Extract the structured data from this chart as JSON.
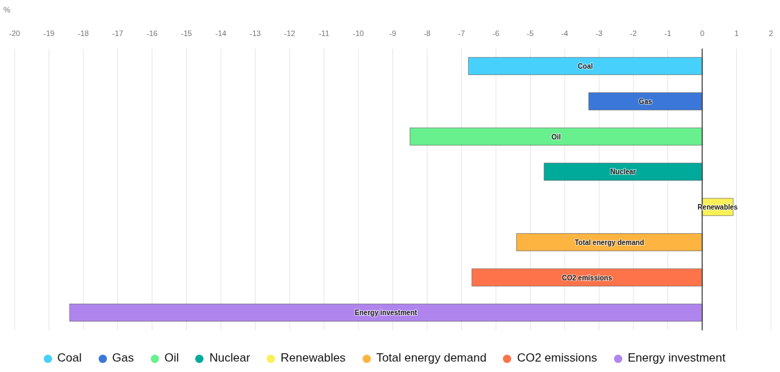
{
  "chart_data": {
    "type": "bar",
    "orientation": "horizontal",
    "stacked": true,
    "xlabel": "%",
    "categories": [
      null,
      null,
      null,
      null,
      null,
      null,
      null,
      null
    ],
    "series": [
      {
        "name": "Coal",
        "color": "#48d0fc",
        "values": [
          -6.8,
          null,
          null,
          null,
          null,
          null,
          null,
          null
        ]
      },
      {
        "name": "Gas",
        "color": "#3b77d8",
        "values": [
          null,
          -3.3,
          null,
          null,
          null,
          null,
          null,
          null
        ]
      },
      {
        "name": "Oil",
        "color": "#68f08f",
        "values": [
          null,
          null,
          -8.5,
          null,
          null,
          null,
          null,
          null
        ]
      },
      {
        "name": "Nuclear",
        "color": "#00aa9a",
        "values": [
          null,
          null,
          null,
          -4.6,
          null,
          null,
          null,
          null
        ]
      },
      {
        "name": "Renewables",
        "color": "#fbf056",
        "values": [
          null,
          null,
          null,
          null,
          0.9,
          null,
          null,
          null
        ]
      },
      {
        "name": "Total energy demand",
        "color": "#fdb440",
        "values": [
          null,
          null,
          null,
          null,
          null,
          -5.4,
          null,
          null
        ]
      },
      {
        "name": "CO2 emissions",
        "color": "#fe734a",
        "values": [
          null,
          null,
          null,
          null,
          null,
          null,
          -6.7,
          null
        ]
      },
      {
        "name": "Energy investment",
        "color": "#af85ed",
        "values": [
          null,
          null,
          null,
          null,
          null,
          null,
          null,
          -18.4
        ]
      }
    ],
    "xlim": [
      -20,
      2
    ],
    "xticks": [
      -20,
      -19,
      -18,
      -17,
      -16,
      -15,
      -14,
      -13,
      -12,
      -11,
      -10,
      -9,
      -8,
      -7,
      -6,
      -5,
      -4,
      -3,
      -2,
      -1,
      0,
      1,
      2
    ],
    "grid": "x",
    "legend": "bottom",
    "tick_labels": "x"
  }
}
